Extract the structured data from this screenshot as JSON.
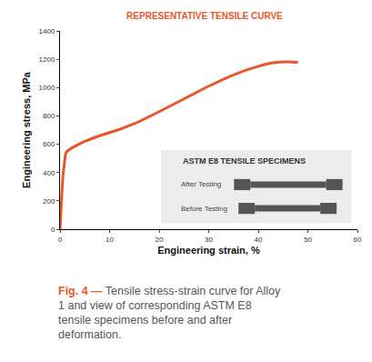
{
  "chart_data": {
    "type": "line",
    "title": "REPRESENTATIVE TENSILE CURVE",
    "x_label": "Engineering strain, %",
    "y_label": "Engineering stress, MPa",
    "x": [
      0,
      0.3,
      0.6,
      0.9,
      1.2,
      2,
      3,
      5,
      8,
      12,
      15,
      20,
      25,
      30,
      35,
      40,
      43,
      46,
      48
    ],
    "values": [
      0,
      200,
      380,
      470,
      540,
      565,
      585,
      620,
      660,
      705,
      745,
      830,
      920,
      1010,
      1090,
      1150,
      1175,
      1182,
      1178
    ],
    "color": "#e8562a",
    "xlim": [
      0,
      60
    ],
    "ylim": [
      0,
      1400
    ],
    "xticks": [
      0,
      10,
      20,
      30,
      40,
      50,
      60
    ],
    "yticks": [
      0,
      200,
      400,
      600,
      800,
      1000,
      1200,
      1400
    ],
    "grid": false
  },
  "inset": {
    "title": "ASTM E8 TENSILE SPECIMENS",
    "labels": [
      "After Testing",
      "Before Testing"
    ]
  },
  "caption": {
    "label": "Fig. 4 —",
    "text": "Tensile stress-strain curve for Alloy 1 and view of corresponding ASTM E8 tensile specimens before and after deformation."
  }
}
